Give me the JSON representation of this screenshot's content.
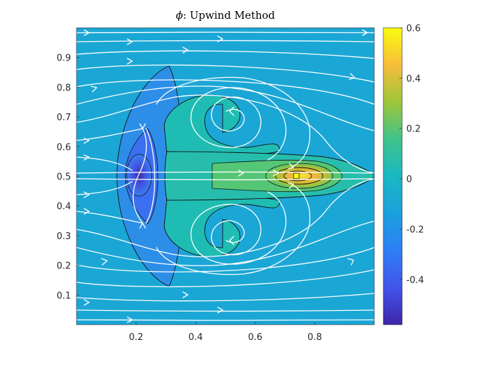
{
  "chart_data": {
    "type": "heatmap",
    "title": "ϕ: Upwind Method",
    "title_symbol": "ϕ",
    "title_rest": ": Upwind Method",
    "xlabel": "",
    "ylabel": "",
    "xlim": [
      0,
      1
    ],
    "ylim": [
      0,
      1
    ],
    "x_ticks": [
      0.2,
      0.4,
      0.6,
      0.8
    ],
    "x_tick_labels": [
      "0.2",
      "0.4",
      "0.6",
      "0.8"
    ],
    "y_ticks": [
      0.1,
      0.2,
      0.3,
      0.4,
      0.5,
      0.6,
      0.7,
      0.8,
      0.9
    ],
    "y_tick_labels": [
      "0.1",
      "0.2",
      "0.3",
      "0.4",
      "0.5",
      "0.6",
      "0.7",
      "0.8",
      "0.9"
    ],
    "colorbar": {
      "colormap": "parula",
      "range": [
        -0.58,
        0.6
      ],
      "ticks": [
        -0.4,
        -0.2,
        0,
        0.2,
        0.4,
        0.6
      ],
      "tick_labels": [
        "-0.4",
        "-0.2",
        "0",
        "0.2",
        "0.4",
        "0.6"
      ]
    },
    "background_value": 0.0,
    "features": [
      {
        "kind": "min",
        "x": 0.21,
        "y": 0.5,
        "value": -0.55
      },
      {
        "kind": "max",
        "x": 0.73,
        "y": 0.5,
        "value": 0.5
      }
    ],
    "vortices": [
      {
        "x": 0.5,
        "y": 0.7,
        "rotation": "counterclockwise"
      },
      {
        "x": 0.5,
        "y": 0.3,
        "rotation": "clockwise"
      }
    ],
    "grid": false,
    "overlays": [
      "contour lines",
      "white streamlines with arrows"
    ]
  },
  "colors": {
    "background_field": "#1ba7d6",
    "streamline": "#ffffff",
    "contour": "#111111",
    "parula_stops": [
      "#3e26a8",
      "#4254ea",
      "#2e7ff6",
      "#1ba7d6",
      "#1dbcb0",
      "#5cc86d",
      "#c8c125",
      "#fbcb32",
      "#f9fb0e"
    ]
  }
}
